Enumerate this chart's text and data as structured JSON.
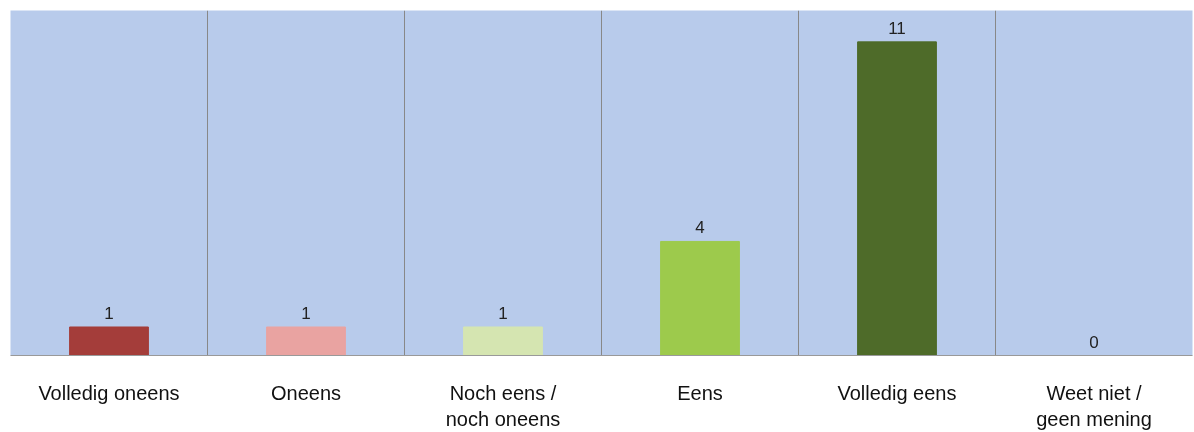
{
  "chart_data": {
    "type": "bar",
    "categories": [
      "Volledig oneens",
      "Oneens",
      "Noch eens / noch oneens",
      "Eens",
      "Volledig eens",
      "Weet niet / geen mening"
    ],
    "values": [
      1,
      1,
      1,
      4,
      11,
      0
    ],
    "colors": [
      "#a43d3a",
      "#e9a3a1",
      "#d5e5b1",
      "#9dca4c",
      "#4e6b29",
      "#4e6b29"
    ],
    "data_labels": true,
    "grid": "x"
  }
}
